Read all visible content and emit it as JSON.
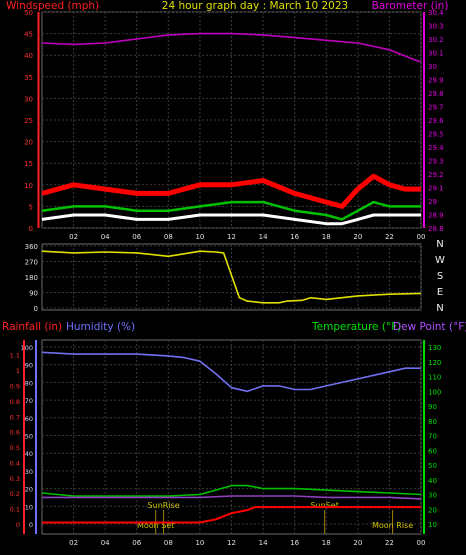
{
  "chart_data": [
    {
      "type": "line",
      "title": "24 hour graph day : March 10 2023",
      "ylabel": "Windspeed (mph)",
      "y2label": "Barometer (in)",
      "x_ticks": [
        "02",
        "04",
        "06",
        "08",
        "10",
        "12",
        "14",
        "16",
        "18",
        "20",
        "22",
        "00"
      ],
      "y_ticks": [
        0,
        5,
        10,
        15,
        20,
        25,
        30,
        35,
        40,
        45,
        50
      ],
      "y2_ticks": [
        "28.8",
        "28.9",
        "29",
        "29.1",
        "29.2",
        "29.3",
        "29.4",
        "29.5",
        "29.6",
        "29.7",
        "29.8",
        "29.9",
        "30",
        "30.1",
        "30.2",
        "30.3",
        "30.4"
      ],
      "ylim": [
        0,
        50
      ],
      "y2lim": [
        28.8,
        30.4
      ],
      "colors": {
        "barometer": "#c000c0",
        "gust": "#ff0000",
        "average": "#00c000",
        "speed": "#ffffff",
        "axis_left": "#ff2020",
        "axis_right": "#e000e0"
      },
      "series": {
        "barometer": {
          "x": [
            0,
            2,
            4,
            6,
            8,
            10,
            12,
            14,
            16,
            18,
            20,
            22,
            23.5,
            24
          ],
          "y": [
            30.17,
            30.16,
            30.17,
            30.2,
            30.23,
            30.24,
            30.24,
            30.23,
            30.21,
            30.19,
            30.17,
            30.12,
            30.05,
            30.03
          ]
        },
        "gust": {
          "x": [
            0,
            2,
            4,
            6,
            8,
            10,
            12,
            14,
            16,
            18,
            19,
            20,
            21,
            22,
            23,
            24
          ],
          "y": [
            8,
            10,
            9,
            8,
            8,
            10,
            10,
            11,
            8,
            6,
            5,
            9,
            12,
            10,
            9,
            9
          ]
        },
        "average": {
          "x": [
            0,
            2,
            4,
            6,
            8,
            10,
            12,
            14,
            16,
            18,
            19,
            20,
            21,
            22,
            23,
            24
          ],
          "y": [
            4,
            5,
            5,
            4,
            4,
            5,
            6,
            6,
            4,
            3,
            2,
            4,
            6,
            5,
            5,
            5
          ]
        },
        "speed": {
          "x": [
            0,
            2,
            4,
            6,
            8,
            10,
            12,
            14,
            16,
            18,
            19,
            20,
            21,
            22,
            23,
            24
          ],
          "y": [
            2,
            3,
            3,
            2,
            2,
            3,
            3,
            3,
            2,
            1,
            1,
            2,
            3,
            3,
            3,
            3
          ]
        }
      }
    },
    {
      "type": "line",
      "y_ticks": [
        0,
        90,
        180,
        270,
        360
      ],
      "ylim": [
        0,
        360
      ],
      "compass_labels": [
        "N",
        "W",
        "S",
        "E",
        "N"
      ],
      "colors": {
        "direction": "#e0e000"
      },
      "series": {
        "direction": {
          "x": [
            0,
            2,
            4,
            6,
            7,
            8,
            9,
            10,
            11,
            11.5,
            12.5,
            13,
            14,
            15,
            15.5,
            16.5,
            17,
            18,
            19,
            20,
            22,
            24
          ],
          "y": [
            330,
            320,
            325,
            320,
            310,
            300,
            315,
            330,
            325,
            320,
            60,
            40,
            30,
            30,
            40,
            45,
            60,
            50,
            60,
            70,
            80,
            85
          ]
        }
      }
    },
    {
      "type": "line",
      "ylabel": "Rainfall (in)",
      "ylabel2": "Humidity (%)",
      "y2label": "Temperature (°F)",
      "y2label2": "Dew Point (°F)",
      "y_ticks": [
        "0",
        "0.1",
        "0.2",
        "0.3",
        "0.4",
        "0.5",
        "0.6",
        "0.7",
        "0.8",
        "0.9",
        "1",
        "1.1"
      ],
      "humidity_ticks": [
        0,
        10,
        20,
        30,
        40,
        50,
        60,
        70,
        80,
        90,
        100
      ],
      "y2_ticks": [
        10,
        20,
        30,
        40,
        50,
        60,
        70,
        80,
        90,
        100,
        110,
        120,
        130
      ],
      "ylim": [
        0,
        1.2
      ],
      "y2lim": [
        10,
        130
      ],
      "annotations": [
        "SunRise",
        "SunSet",
        "Moon Set",
        "Moon Rise"
      ],
      "colors": {
        "humidity": "#7070f0",
        "temperature": "#00c000",
        "dewpoint": "#9040c0",
        "rainfall": "#ff0000",
        "axis_left": "#ff2020",
        "axis_humidity": "#7070ff",
        "axis_right": "#00e000",
        "axis_dewpoint": "#b050ff",
        "astro": "#a08000"
      },
      "series": {
        "humidity": {
          "x": [
            0,
            2,
            4,
            6,
            8,
            9,
            10,
            11,
            12,
            13,
            14,
            15,
            16,
            17,
            18,
            19,
            20,
            21,
            22,
            23,
            24
          ],
          "y": [
            97,
            96,
            96,
            96,
            95,
            94,
            92,
            85,
            77,
            75,
            78,
            78,
            76,
            76,
            78,
            80,
            82,
            84,
            86,
            88,
            88
          ]
        },
        "temperature": {
          "x": [
            0,
            2,
            4,
            6,
            8,
            10,
            11,
            12,
            13,
            14,
            16,
            18,
            20,
            22,
            24
          ],
          "y": [
            31,
            29,
            29,
            29,
            29,
            30,
            33,
            36,
            36,
            34,
            34,
            33,
            32,
            31,
            30
          ]
        },
        "dewpoint": {
          "x": [
            0,
            2,
            4,
            6,
            8,
            10,
            12,
            14,
            16,
            18,
            20,
            22,
            24
          ],
          "y": [
            28,
            28,
            28,
            28,
            28,
            28,
            29,
            29,
            29,
            28,
            28,
            28,
            27
          ]
        },
        "rainfall": {
          "x": [
            0,
            10,
            11,
            12,
            13,
            13.5,
            24
          ],
          "y": [
            0.01,
            0.01,
            0.03,
            0.07,
            0.09,
            0.11,
            0.11
          ]
        }
      }
    }
  ]
}
